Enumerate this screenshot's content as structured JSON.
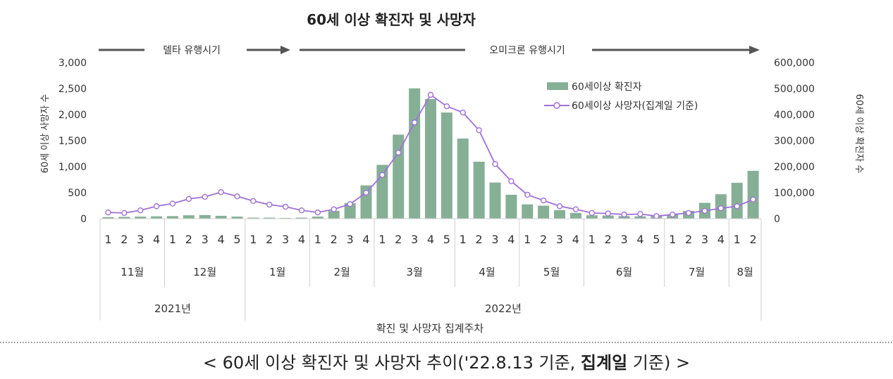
{
  "chart_data": {
    "type": "bar+line",
    "title": "60세 이상 확진자 및 사망자",
    "left_axis": {
      "label": "60세 이상 사망자 수",
      "ticks": [
        "3,000",
        "2,500",
        "2,000",
        "1,500",
        "1,000",
        "500",
        "0"
      ],
      "range": [
        0,
        3000
      ]
    },
    "right_axis": {
      "label": "60세 이상 확진자 수",
      "ticks": [
        "600,000",
        "500,000",
        "400,000",
        "300,000",
        "200,000",
        "100,000",
        "0"
      ],
      "range": [
        0,
        600000
      ]
    },
    "xlabel": "확진 및 사망자 집계주차",
    "weeks": [
      "1",
      "2",
      "3",
      "4",
      "1",
      "2",
      "3",
      "4",
      "5",
      "1",
      "2",
      "3",
      "4",
      "1",
      "2",
      "3",
      "4",
      "1",
      "2",
      "3",
      "4",
      "5",
      "1",
      "2",
      "3",
      "4",
      "1",
      "2",
      "3",
      "4",
      "1",
      "2",
      "3",
      "4",
      "5",
      "1",
      "2",
      "3",
      "4",
      "1",
      "2"
    ],
    "months": [
      {
        "label": "11월",
        "count": 4
      },
      {
        "label": "12월",
        "count": 5
      },
      {
        "label": "1월",
        "count": 4
      },
      {
        "label": "2월",
        "count": 4
      },
      {
        "label": "3월",
        "count": 5
      },
      {
        "label": "4월",
        "count": 4
      },
      {
        "label": "5월",
        "count": 4
      },
      {
        "label": "6월",
        "count": 5
      },
      {
        "label": "7월",
        "count": 4
      },
      {
        "label": "8월",
        "count": 2
      }
    ],
    "years": [
      {
        "label": "2021년",
        "count": 9
      },
      {
        "label": "2022년",
        "count": 32
      }
    ],
    "series": [
      {
        "name": "60세이상 확진자",
        "type": "bar",
        "axis": "right",
        "color": "#86b096",
        "values": [
          6000,
          7000,
          8000,
          9000,
          10000,
          13000,
          14000,
          11000,
          8000,
          4000,
          4000,
          3000,
          4000,
          8000,
          30000,
          60000,
          128000,
          207000,
          323000,
          501000,
          460000,
          408000,
          308000,
          219000,
          139000,
          92000,
          55000,
          50000,
          33000,
          22000,
          13000,
          12000,
          10000,
          9000,
          10000,
          17000,
          30000,
          61000,
          94000,
          138000,
          184000
        ]
      },
      {
        "name": "60세이상 사망자(집계일 기준)",
        "type": "line",
        "axis": "left",
        "color": "#a070d8",
        "values": [
          120,
          110,
          160,
          240,
          290,
          380,
          420,
          510,
          430,
          340,
          270,
          230,
          160,
          120,
          180,
          280,
          500,
          840,
          1270,
          1850,
          2380,
          2160,
          2040,
          1700,
          1050,
          720,
          460,
          350,
          240,
          180,
          110,
          100,
          80,
          90,
          50,
          80,
          110,
          150,
          200,
          240,
          370
        ]
      }
    ],
    "phase_labels": {
      "delta": "델타 유행시기",
      "omicron": "오미크론 유행시기"
    }
  },
  "caption": {
    "prefix": "< 60세 이상 확진자 및 사망자 추이('22.8.13 기준, ",
    "bold": "집계일",
    "suffix": " 기준) >"
  },
  "colors": {
    "bar": "#86b096",
    "line": "#a070d8",
    "arrow": "#555555"
  }
}
